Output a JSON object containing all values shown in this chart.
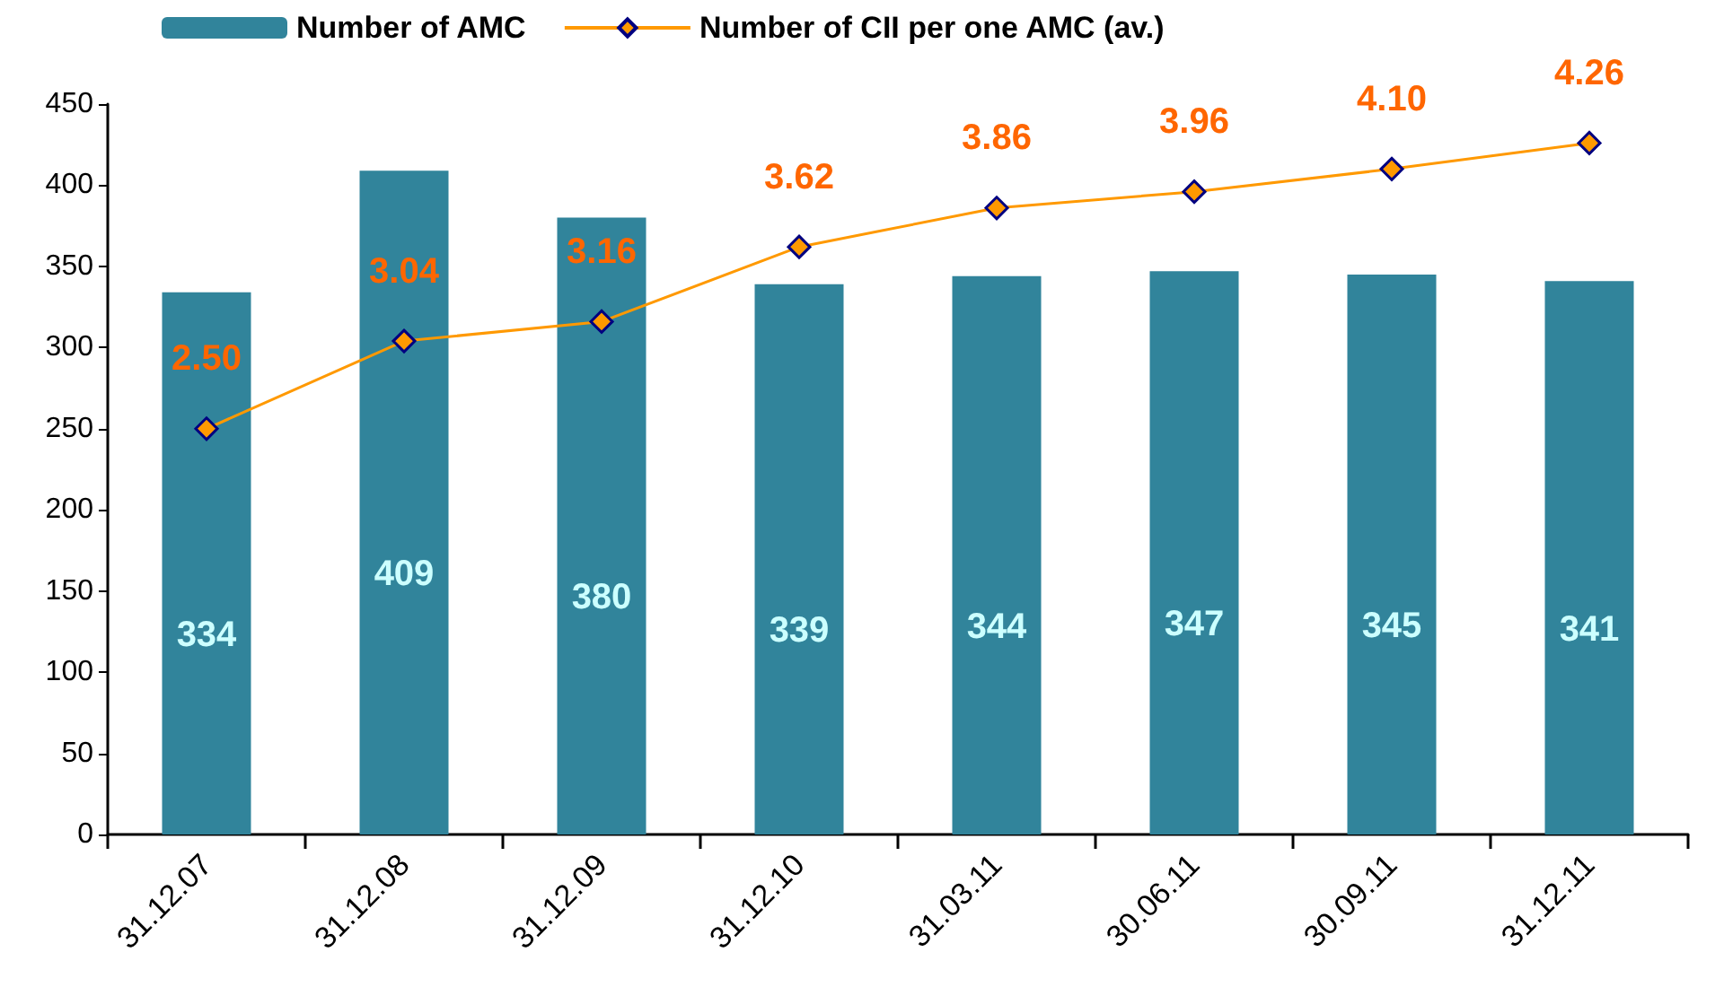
{
  "chart_data": {
    "type": "bar",
    "categories": [
      "31.12.07",
      "31.12.08",
      "31.12.09",
      "31.12.10",
      "31.03.11",
      "30.06.11",
      "30.09.11",
      "31.12.11"
    ],
    "series": [
      {
        "name": "Number of AMC",
        "color": "#31849b",
        "values": [
          334,
          409,
          380,
          339,
          344,
          347,
          345,
          341
        ]
      },
      {
        "name": "Number of CII per one AMC (av.)",
        "type": "line",
        "axis": "y2",
        "color": "#ff9900",
        "values": [
          2.5,
          3.04,
          3.16,
          3.62,
          3.86,
          3.96,
          4.1,
          4.26
        ],
        "value_labels": [
          "2.50",
          "3.04",
          "3.16",
          "3.62",
          "3.86",
          "3.96",
          "4.10",
          "4.26"
        ]
      }
    ],
    "ylim": [
      0,
      450
    ],
    "yticks": [
      0,
      50,
      100,
      150,
      200,
      250,
      300,
      350,
      400,
      450
    ],
    "y2lim": [
      0,
      4.5
    ],
    "tick_labels": "xy",
    "data_labels": true,
    "grid": false,
    "legend": "top left",
    "marker": "diamond"
  }
}
